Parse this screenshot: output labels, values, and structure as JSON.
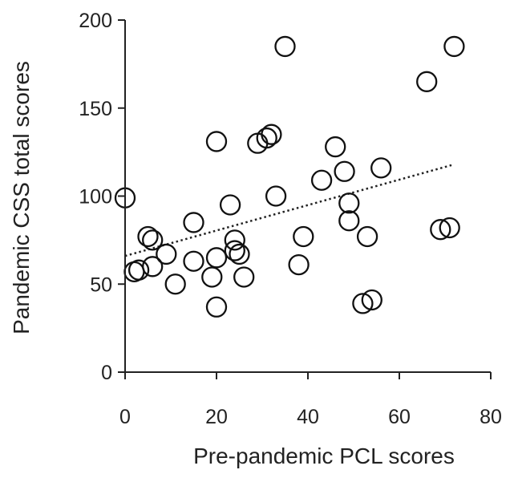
{
  "chart_data": {
    "type": "scatter",
    "xlabel": "Pre-pandemic PCL scores",
    "ylabel": "Pandemic CSS total scores",
    "xlim": [
      0,
      80
    ],
    "ylim": [
      0,
      200
    ],
    "x_ticks": [
      "0",
      "20",
      "40",
      "60",
      "80"
    ],
    "y_ticks": [
      "0",
      "50",
      "100",
      "150",
      "200"
    ],
    "grid": false,
    "marker": "open-circle",
    "trendline": {
      "style": "dotted",
      "x": [
        0,
        72
      ],
      "y": [
        66,
        118
      ]
    },
    "points": [
      {
        "x": 0,
        "y": 99
      },
      {
        "x": 2,
        "y": 57
      },
      {
        "x": 3,
        "y": 58
      },
      {
        "x": 5,
        "y": 77
      },
      {
        "x": 6,
        "y": 75
      },
      {
        "x": 6,
        "y": 60
      },
      {
        "x": 9,
        "y": 67
      },
      {
        "x": 11,
        "y": 50
      },
      {
        "x": 15,
        "y": 85
      },
      {
        "x": 15,
        "y": 63
      },
      {
        "x": 19,
        "y": 54
      },
      {
        "x": 20,
        "y": 131
      },
      {
        "x": 20,
        "y": 65
      },
      {
        "x": 20,
        "y": 37
      },
      {
        "x": 23,
        "y": 95
      },
      {
        "x": 24,
        "y": 75
      },
      {
        "x": 24,
        "y": 69
      },
      {
        "x": 25,
        "y": 67
      },
      {
        "x": 26,
        "y": 54
      },
      {
        "x": 29,
        "y": 130
      },
      {
        "x": 31,
        "y": 133
      },
      {
        "x": 32,
        "y": 135
      },
      {
        "x": 33,
        "y": 100
      },
      {
        "x": 35,
        "y": 185
      },
      {
        "x": 38,
        "y": 61
      },
      {
        "x": 39,
        "y": 77
      },
      {
        "x": 43,
        "y": 109
      },
      {
        "x": 46,
        "y": 128
      },
      {
        "x": 48,
        "y": 114
      },
      {
        "x": 49,
        "y": 96
      },
      {
        "x": 49,
        "y": 86
      },
      {
        "x": 52,
        "y": 39
      },
      {
        "x": 53,
        "y": 77
      },
      {
        "x": 54,
        "y": 41
      },
      {
        "x": 56,
        "y": 116
      },
      {
        "x": 66,
        "y": 165
      },
      {
        "x": 69,
        "y": 81
      },
      {
        "x": 71,
        "y": 82
      },
      {
        "x": 72,
        "y": 185
      }
    ]
  }
}
